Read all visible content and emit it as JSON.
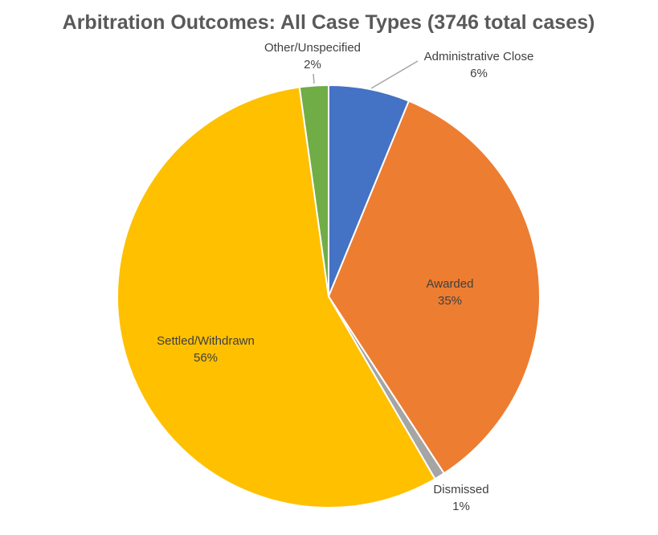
{
  "chart_data": {
    "type": "pie",
    "title": "Arbitration Outcomes: All Case Types (3746 total cases)",
    "start_angle_deg": 0,
    "direction": "clockwise",
    "slices": [
      {
        "label": "Administrative Close",
        "value": 6.2,
        "display_pct": "6%",
        "color": "#4472C4"
      },
      {
        "label": "Awarded",
        "value": 34.6,
        "display_pct": "35%",
        "color": "#ED7D31"
      },
      {
        "label": "Dismissed",
        "value": 0.8,
        "display_pct": "1%",
        "color": "#A5A5A5"
      },
      {
        "label": "Settled/Withdrawn",
        "value": 56.2,
        "display_pct": "56%",
        "color": "#FFC000"
      },
      {
        "label": "Other/Unspecified",
        "value": 2.2,
        "display_pct": "2%",
        "color": "#70AD47"
      }
    ],
    "legend": "none"
  }
}
